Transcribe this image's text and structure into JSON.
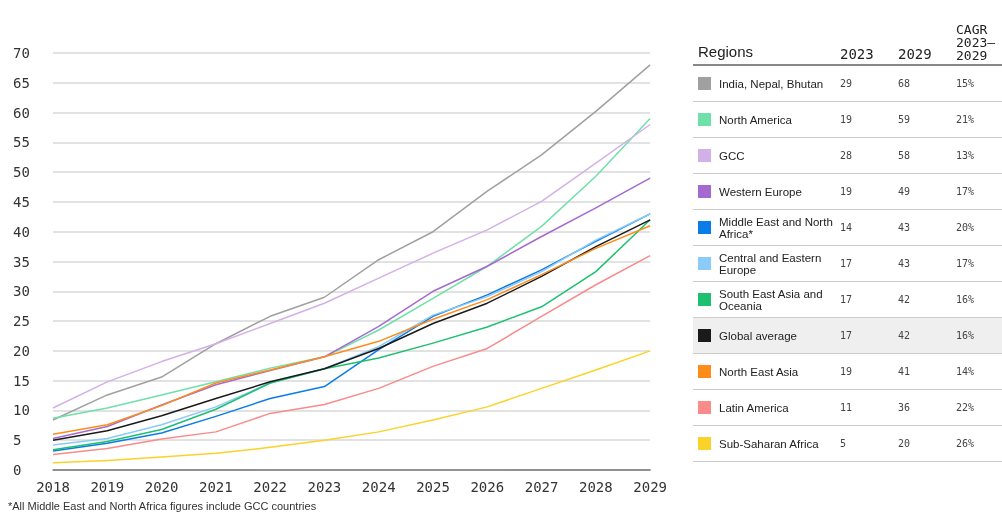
{
  "chart_data": {
    "type": "line",
    "categories": [
      "2018",
      "2019",
      "2020",
      "2021",
      "2022",
      "2023",
      "2024",
      "2025",
      "2026",
      "2027",
      "2028",
      "2029"
    ],
    "series": [
      {
        "name": "India, Nepal, Bhutan",
        "color": "#a0a0a0",
        "values": [
          8.4,
          12.6,
          15.6,
          21.2,
          25.8,
          29,
          35.3,
          40.0,
          46.8,
          52.9,
          60.2,
          68
        ]
      },
      {
        "name": "North America",
        "color": "#6fe0a8",
        "values": [
          8.7,
          10.4,
          12.6,
          14.8,
          17.1,
          19,
          23.5,
          28.8,
          34.2,
          40.9,
          49.3,
          59
        ]
      },
      {
        "name": "GCC",
        "color": "#d4b0e8",
        "values": [
          10.4,
          14.8,
          18.2,
          21.2,
          24.6,
          28,
          32.2,
          36.4,
          40.3,
          45.1,
          51.5,
          58
        ]
      },
      {
        "name": "Western Europe",
        "color": "#a56ad0",
        "values": [
          5.3,
          7.3,
          10.9,
          14.3,
          16.7,
          19,
          24.1,
          30.0,
          34.2,
          39.2,
          44.0,
          49
        ]
      },
      {
        "name": "Middle East and North Africa*",
        "color": "#0a7ce8",
        "values": [
          3.2,
          4.5,
          6.2,
          9.0,
          12.0,
          14,
          20.2,
          25.8,
          29.4,
          33.6,
          38.4,
          43
        ]
      },
      {
        "name": "Central and Eastern Europe",
        "color": "#8ccaf8",
        "values": [
          4.2,
          5.3,
          7.6,
          10.6,
          14.6,
          17,
          20.7,
          26.0,
          29.1,
          33.3,
          38.6,
          43
        ]
      },
      {
        "name": "South East Asia and Oceania",
        "color": "#1cc070",
        "values": [
          3.4,
          4.8,
          6.8,
          10.2,
          14.6,
          17,
          18.8,
          21.3,
          24.0,
          27.4,
          33.3,
          42
        ]
      },
      {
        "name": "Global average",
        "color": "#1a1a1a",
        "values": [
          5.0,
          6.6,
          9.1,
          12.0,
          14.8,
          17,
          20.4,
          24.6,
          28.0,
          32.5,
          37.5,
          42
        ]
      },
      {
        "name": "North East Asia",
        "color": "#ff8c1a",
        "values": [
          6.0,
          7.6,
          10.8,
          14.6,
          16.8,
          19,
          21.6,
          25.3,
          28.6,
          32.8,
          37.2,
          41
        ]
      },
      {
        "name": "Latin America",
        "color": "#f98b8b",
        "values": [
          2.6,
          3.6,
          5.2,
          6.4,
          9.5,
          11,
          13.7,
          17.4,
          20.4,
          25.8,
          31.1,
          36
        ]
      },
      {
        "name": "Sub-Saharan Africa",
        "color": "#fad22a",
        "values": [
          1.2,
          1.6,
          2.2,
          2.8,
          3.8,
          5,
          6.4,
          8.4,
          10.6,
          13.7,
          16.8,
          20
        ]
      }
    ],
    "ylim": [
      0,
      70
    ],
    "yticks": [
      0,
      5,
      10,
      15,
      20,
      25,
      30,
      35,
      40,
      45,
      50,
      55,
      60,
      65,
      70
    ],
    "grid": "y",
    "legend": "right",
    "legend_title": "Regions",
    "annotations": [
      "2023",
      "2029",
      "CAGR 2023–2029",
      "29",
      "68",
      "15%",
      "19",
      "59",
      "21%",
      "28",
      "58",
      "13%",
      "19",
      "49",
      "17%",
      "14",
      "43",
      "20%",
      "17",
      "43",
      "17%",
      "17",
      "42",
      "16%",
      "17",
      "42",
      "16%",
      "19",
      "41",
      "14%",
      "11",
      "36",
      "22%",
      "5",
      "20",
      "26%",
      "*All Middle East and North Africa figures include GCC countries"
    ]
  }
}
